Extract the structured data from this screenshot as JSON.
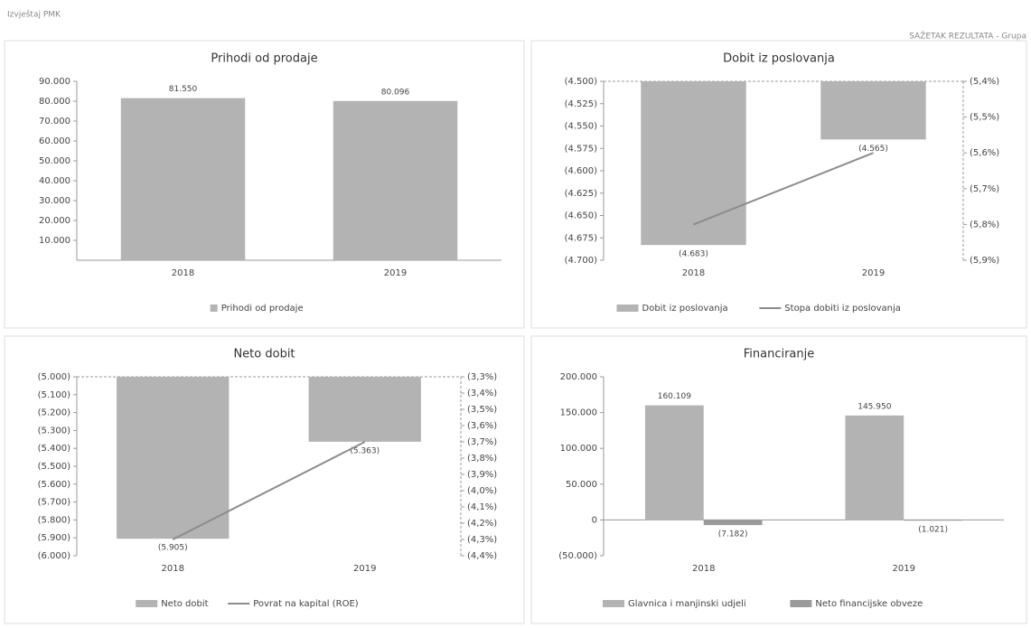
{
  "header": {
    "left": "Izvještaj PMK",
    "right": "SAŽETAK REZULTATA - Grupa"
  },
  "chart_data": [
    {
      "type": "bar",
      "title": "Prihodi od prodaje",
      "categories": [
        "2018",
        "2019"
      ],
      "series": [
        {
          "name": "Prihodi od prodaje",
          "color": "#b3b3b3",
          "values": [
            81550,
            80096
          ],
          "value_labels": [
            "81.550",
            "80.096"
          ]
        }
      ],
      "ylim": [
        0,
        90000
      ],
      "yticks": [
        {
          "value": 10000,
          "label": "10.000"
        },
        {
          "value": 20000,
          "label": "20.000"
        },
        {
          "value": 30000,
          "label": "30.000"
        },
        {
          "value": 40000,
          "label": "40.000"
        },
        {
          "value": 50000,
          "label": "50.000"
        },
        {
          "value": 60000,
          "label": "60.000"
        },
        {
          "value": 70000,
          "label": "70.000"
        },
        {
          "value": 80000,
          "label": "80.000"
        },
        {
          "value": 90000,
          "label": "90.000"
        }
      ]
    },
    {
      "type": "bar",
      "title": "Dobit iz poslovanja",
      "categories": [
        "2018",
        "2019"
      ],
      "series": [
        {
          "name": "Dobit iz poslovanja",
          "color": "#b3b3b3",
          "values": [
            -4683,
            -4565
          ],
          "value_labels": [
            "(4.683)",
            "(4.565)"
          ]
        },
        {
          "name": "Stopa dobiti iz poslovanja",
          "color": "#8c8c8c",
          "axis": "y2",
          "values": [
            -5.8,
            -5.6
          ]
        }
      ],
      "ylim": [
        -4700,
        -4500
      ],
      "yticks": [
        {
          "value": -4500,
          "label": "(4.500)"
        },
        {
          "value": -4525,
          "label": "(4.525)"
        },
        {
          "value": -4550,
          "label": "(4.550)"
        },
        {
          "value": -4575,
          "label": "(4.575)"
        },
        {
          "value": -4600,
          "label": "(4.600)"
        },
        {
          "value": -4625,
          "label": "(4.625)"
        },
        {
          "value": -4650,
          "label": "(4.650)"
        },
        {
          "value": -4675,
          "label": "(4.675)"
        },
        {
          "value": -4700,
          "label": "(4.700)"
        }
      ],
      "y2lim": [
        -5.9,
        -5.4
      ],
      "y2ticks": [
        {
          "value": -5.4,
          "label": "(5,4%)"
        },
        {
          "value": -5.5,
          "label": "(5,5%)"
        },
        {
          "value": -5.6,
          "label": "(5,6%)"
        },
        {
          "value": -5.7,
          "label": "(5,7%)"
        },
        {
          "value": -5.8,
          "label": "(5,8%)"
        },
        {
          "value": -5.9,
          "label": "(5,9%)"
        }
      ]
    },
    {
      "type": "bar",
      "title": "Neto dobit",
      "categories": [
        "2018",
        "2019"
      ],
      "series": [
        {
          "name": "Neto dobit",
          "color": "#b3b3b3",
          "values": [
            -5905,
            -5363
          ],
          "value_labels": [
            "(5.905)",
            "(5.363)"
          ]
        },
        {
          "name": "Povrat na kapital (ROE)",
          "color": "#8c8c8c",
          "axis": "y2",
          "values": [
            -4.3,
            -3.7
          ]
        }
      ],
      "ylim": [
        -6000,
        -5000
      ],
      "yticks": [
        {
          "value": -5000,
          "label": "(5.000)"
        },
        {
          "value": -5100,
          "label": "(5.100)"
        },
        {
          "value": -5200,
          "label": "(5.200)"
        },
        {
          "value": -5300,
          "label": "(5.300)"
        },
        {
          "value": -5400,
          "label": "(5.400)"
        },
        {
          "value": -5500,
          "label": "(5.500)"
        },
        {
          "value": -5600,
          "label": "(5.600)"
        },
        {
          "value": -5700,
          "label": "(5.700)"
        },
        {
          "value": -5800,
          "label": "(5.800)"
        },
        {
          "value": -5900,
          "label": "(5.900)"
        },
        {
          "value": -6000,
          "label": "(6.000)"
        }
      ],
      "y2lim": [
        -4.4,
        -3.3
      ],
      "y2ticks": [
        {
          "value": -3.3,
          "label": "(3,3%)"
        },
        {
          "value": -3.4,
          "label": "(3,4%)"
        },
        {
          "value": -3.5,
          "label": "(3,5%)"
        },
        {
          "value": -3.6,
          "label": "(3,6%)"
        },
        {
          "value": -3.7,
          "label": "(3,7%)"
        },
        {
          "value": -3.8,
          "label": "(3,8%)"
        },
        {
          "value": -3.9,
          "label": "(3,9%)"
        },
        {
          "value": -4.0,
          "label": "(4,0%)"
        },
        {
          "value": -4.1,
          "label": "(4,1%)"
        },
        {
          "value": -4.2,
          "label": "(4,2%)"
        },
        {
          "value": -4.3,
          "label": "(4,3%)"
        },
        {
          "value": -4.4,
          "label": "(4,4%)"
        }
      ]
    },
    {
      "type": "bar",
      "title": "Financiranje",
      "categories": [
        "2018",
        "2019"
      ],
      "series": [
        {
          "name": "Glavnica i manjinski udjeli",
          "color": "#b3b3b3",
          "values": [
            160109,
            145950
          ],
          "value_labels": [
            "160.109",
            "145.950"
          ]
        },
        {
          "name": "Neto financijske obveze",
          "color": "#9a9a9a",
          "values": [
            -7182,
            -1021
          ],
          "value_labels": [
            "(7.182)",
            "(1.021)"
          ]
        }
      ],
      "ylim": [
        -50000,
        200000
      ],
      "yticks": [
        {
          "value": -50000,
          "label": "(50.000)"
        },
        0,
        {
          "value": 50000,
          "label": "50.000"
        },
        {
          "value": 100000,
          "label": "100.000"
        },
        {
          "value": 150000,
          "label": "150.000"
        },
        {
          "value": 200000,
          "label": "200.000"
        }
      ]
    }
  ]
}
